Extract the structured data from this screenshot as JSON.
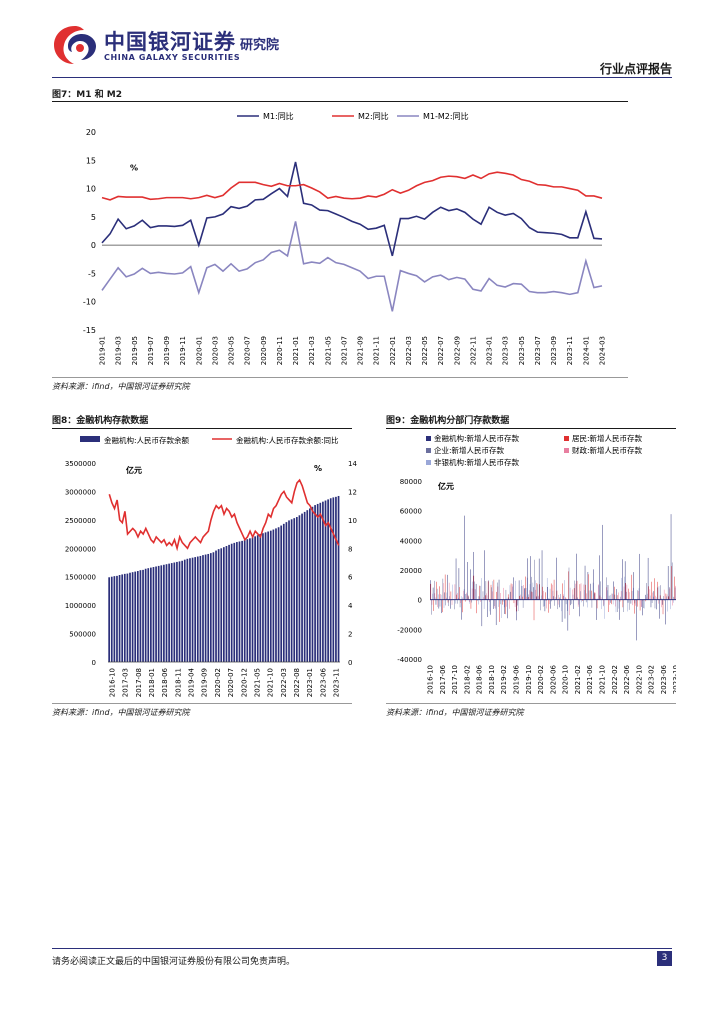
{
  "header": {
    "logo_cn": "中国银河证券",
    "logo_en": "CHINA GALAXY SECURITIES",
    "institute": "研究院",
    "report_type": "行业点评报告"
  },
  "figures": {
    "fig7": {
      "title": "图7：M1 和 M2",
      "source": "资料来源：ifind，中国银河证券研究院"
    },
    "fig8": {
      "title": "图8：金融机构存款数据",
      "source": "资料来源：ifind，中国银河证券研究院"
    },
    "fig9": {
      "title": "图9：金融机构分部门存款数据",
      "source": "资料来源：ifind，中国银河证券研究院"
    }
  },
  "footer": {
    "disclaimer": "请务必阅读正文最后的中国银河证券股份有限公司免责声明。",
    "page": "3"
  },
  "colors": {
    "navy": "#2b2f7a",
    "red": "#e03030",
    "lavender": "#8a86c0",
    "pink": "#e87fa0",
    "slate": "#6b6f9e",
    "lightblue": "#9aa7d8"
  },
  "chart_data": [
    {
      "type": "line",
      "unit_label": "%",
      "ylim": [
        -15,
        20
      ],
      "yticks": [
        -15,
        -10,
        -5,
        0,
        5,
        10,
        15,
        20
      ],
      "xtick_labels": [
        "2019-01",
        "2019-03",
        "2019-05",
        "2019-07",
        "2019-09",
        "2019-11",
        "2020-01",
        "2020-03",
        "2020-05",
        "2020-07",
        "2020-09",
        "2020-11",
        "2021-01",
        "2021-03",
        "2021-05",
        "2021-07",
        "2021-09",
        "2021-11",
        "2022-01",
        "2022-03",
        "2022-05",
        "2022-07",
        "2022-09",
        "2022-11",
        "2023-01",
        "2023-03",
        "2023-05",
        "2023-07",
        "2023-09",
        "2023-11",
        "2024-01",
        "2024-03"
      ],
      "legend": "top-center",
      "series": [
        {
          "name": "M1:同比",
          "color": "#2b2f7a",
          "values": [
            0.4,
            2.0,
            4.6,
            2.9,
            3.4,
            4.4,
            3.1,
            3.4,
            3.4,
            3.3,
            3.5,
            4.4,
            0.0,
            4.8,
            5.0,
            5.5,
            6.8,
            6.5,
            6.9,
            8.0,
            8.1,
            9.1,
            10.0,
            8.6,
            14.7,
            7.4,
            7.1,
            6.2,
            6.1,
            5.5,
            4.9,
            4.2,
            3.7,
            2.8,
            3.0,
            3.5,
            -1.9,
            4.7,
            4.7,
            5.1,
            4.6,
            5.8,
            6.7,
            6.1,
            6.4,
            5.8,
            4.6,
            3.7,
            6.7,
            5.8,
            5.3,
            5.6,
            4.7,
            3.1,
            2.3,
            2.2,
            2.1,
            1.9,
            1.3,
            1.3,
            5.9,
            1.2,
            1.1
          ]
        },
        {
          "name": "M2:同比",
          "color": "#e03030",
          "values": [
            8.4,
            8.0,
            8.6,
            8.5,
            8.5,
            8.5,
            8.1,
            8.2,
            8.4,
            8.4,
            8.4,
            8.2,
            8.4,
            8.8,
            8.4,
            8.8,
            10.1,
            11.1,
            11.1,
            11.1,
            10.7,
            10.4,
            10.9,
            10.5,
            10.5,
            10.7,
            10.1,
            9.4,
            8.3,
            8.6,
            8.3,
            8.2,
            8.3,
            8.7,
            8.5,
            9.0,
            9.8,
            9.2,
            9.7,
            10.5,
            11.1,
            11.4,
            12.0,
            12.2,
            12.1,
            11.8,
            12.4,
            11.8,
            12.6,
            12.9,
            12.7,
            12.4,
            11.6,
            11.3,
            10.7,
            10.6,
            10.3,
            10.3,
            10.0,
            9.7,
            8.7,
            8.7,
            8.3
          ]
        },
        {
          "name": "M1-M2:同比",
          "color": "#8a86c0",
          "values": [
            -8.0,
            -6.0,
            -4.0,
            -5.6,
            -5.1,
            -4.1,
            -5.0,
            -4.8,
            -5.0,
            -5.1,
            -4.9,
            -3.8,
            -8.4,
            -4.0,
            -3.4,
            -4.6,
            -3.3,
            -4.6,
            -4.2,
            -3.1,
            -2.6,
            -1.3,
            -0.9,
            -1.9,
            4.2,
            -3.3,
            -3.0,
            -3.2,
            -2.2,
            -3.1,
            -3.4,
            -4.0,
            -4.6,
            -5.9,
            -5.5,
            -5.5,
            -11.7,
            -4.5,
            -5.0,
            -5.4,
            -6.5,
            -5.6,
            -5.3,
            -6.1,
            -5.7,
            -6.0,
            -7.8,
            -8.1,
            -5.9,
            -7.1,
            -7.4,
            -6.8,
            -6.9,
            -8.2,
            -8.4,
            -8.4,
            -8.2,
            -8.4,
            -8.7,
            -8.4,
            -2.8,
            -7.5,
            -7.2
          ]
        }
      ]
    },
    {
      "type": "bar",
      "left_unit_label": "亿元",
      "right_unit_label": "%",
      "ylim_left": [
        0,
        3500000
      ],
      "yticks_left": [
        0,
        500000,
        1000000,
        1500000,
        2000000,
        2500000,
        3000000,
        3500000
      ],
      "ylim_right": [
        0,
        14
      ],
      "yticks_right": [
        0,
        2,
        4,
        6,
        8,
        10,
        12,
        14
      ],
      "xtick_labels": [
        "2016-10",
        "2017-03",
        "2017-08",
        "2018-01",
        "2018-06",
        "2018-11",
        "2019-04",
        "2019-09",
        "2020-02",
        "2020-07",
        "2020-12",
        "2021-05",
        "2021-10",
        "2022-03",
        "2022-08",
        "2023-01",
        "2023-06",
        "2023-11"
      ],
      "legend": "top-center",
      "series": [
        {
          "name": "金融机构:人民币存款余额",
          "color": "#2b2f7a",
          "kind": "bar",
          "values": [
            1490000,
            1500000,
            1510000,
            1515000,
            1530000,
            1540000,
            1550000,
            1555000,
            1570000,
            1580000,
            1590000,
            1600000,
            1615000,
            1620000,
            1640000,
            1650000,
            1660000,
            1670000,
            1680000,
            1690000,
            1700000,
            1710000,
            1720000,
            1730000,
            1740000,
            1750000,
            1760000,
            1770000,
            1780000,
            1800000,
            1815000,
            1825000,
            1835000,
            1845000,
            1855000,
            1865000,
            1880000,
            1890000,
            1900000,
            1915000,
            1930000,
            1960000,
            1985000,
            2000000,
            2020000,
            2040000,
            2060000,
            2080000,
            2095000,
            2110000,
            2120000,
            2130000,
            2145000,
            2160000,
            2175000,
            2190000,
            2210000,
            2230000,
            2250000,
            2265000,
            2280000,
            2295000,
            2310000,
            2330000,
            2350000,
            2370000,
            2400000,
            2430000,
            2460000,
            2490000,
            2510000,
            2530000,
            2550000,
            2580000,
            2610000,
            2640000,
            2670000,
            2700000,
            2730000,
            2760000,
            2780000,
            2800000,
            2820000,
            2840000,
            2860000,
            2880000,
            2895000,
            2905000,
            2920000
          ]
        },
        {
          "name": "金融机构:人民币存款余额:同比",
          "color": "#e03030",
          "kind": "line",
          "values": [
            11.8,
            11.2,
            10.8,
            11.4,
            10.0,
            9.8,
            10.6,
            9.0,
            9.2,
            9.4,
            9.2,
            8.8,
            9.2,
            9.0,
            9.4,
            9.0,
            8.6,
            8.4,
            8.8,
            8.6,
            8.4,
            8.6,
            8.2,
            8.4,
            8.2,
            8.6,
            8.0,
            8.8,
            8.4,
            8.2,
            8.0,
            8.4,
            8.6,
            8.8,
            8.6,
            8.4,
            8.8,
            9.0,
            9.2,
            10.0,
            10.6,
            11.0,
            10.8,
            11.0,
            10.4,
            10.8,
            10.6,
            10.2,
            10.4,
            9.8,
            9.4,
            9.0,
            8.6,
            8.8,
            9.2,
            8.8,
            9.2,
            9.0,
            8.8,
            9.4,
            9.8,
            10.4,
            10.2,
            10.8,
            11.0,
            11.4,
            11.8,
            12.0,
            11.6,
            11.4,
            11.2,
            12.0,
            12.6,
            12.8,
            12.4,
            11.8,
            11.2,
            11.0,
            10.6,
            10.4,
            10.2,
            10.4,
            10.0,
            9.6,
            9.8,
            9.4,
            9.0,
            8.6,
            8.2
          ]
        }
      ]
    },
    {
      "type": "bar",
      "unit_label": "亿元",
      "ylim": [
        -40000,
        80000
      ],
      "yticks": [
        -40000,
        -20000,
        0,
        20000,
        40000,
        60000,
        80000
      ],
      "xtick_labels": [
        "2016-10",
        "2017-06",
        "2017-10",
        "2018-02",
        "2018-06",
        "2018-10",
        "2019-02",
        "2019-06",
        "2019-10",
        "2020-02",
        "2020-06",
        "2020-10",
        "2021-02",
        "2021-06",
        "2021-10",
        "2022-02",
        "2022-06",
        "2022-10",
        "2023-02",
        "2023-06",
        "2023-10",
        "2024-02"
      ],
      "legend": "top",
      "series_names": [
        "金融机构:新增人民币存款",
        "居民:新增人民币存款",
        "企业:新增人民币存款",
        "财政:新增人民币存款",
        "非银机构:新增人民币存款"
      ]
    }
  ]
}
